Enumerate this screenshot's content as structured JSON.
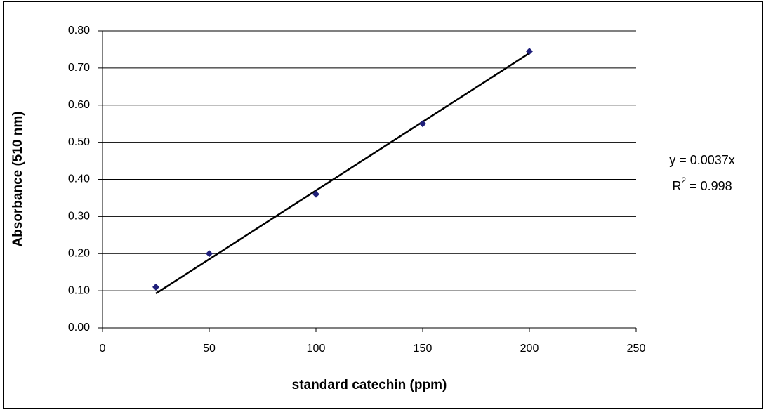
{
  "chart_data": {
    "type": "scatter",
    "x_label": "standard catechin (ppm)",
    "y_label": "Absorbance (510 nm)",
    "x": [
      25,
      50,
      100,
      150,
      200
    ],
    "values": [
      0.11,
      0.2,
      0.36,
      0.55,
      0.745
    ],
    "color": "#1f1f7a",
    "trendline": {
      "x": [
        25,
        200
      ],
      "values": [
        0.0925,
        0.74
      ],
      "color": "#000000"
    },
    "equation_label": "y = 0.0037x",
    "r2_label": "R",
    "r2_superscript": "2",
    "r2_value": " = 0.998",
    "xlim": [
      0,
      250
    ],
    "xticks": [
      0,
      50,
      100,
      150,
      200,
      250
    ],
    "ylim": [
      0,
      0.8
    ],
    "yticks": [
      {
        "value": 0,
        "label": "0.00"
      },
      {
        "value": 0.1,
        "label": "0.10"
      },
      {
        "value": 0.2,
        "label": "0.20"
      },
      {
        "value": 0.3,
        "label": "0.30"
      },
      {
        "value": 0.4,
        "label": "0.40"
      },
      {
        "value": 0.5,
        "label": "0.50"
      },
      {
        "value": 0.6,
        "label": "0.60"
      },
      {
        "value": 0.7,
        "label": "0.70"
      },
      {
        "value": 0.8,
        "label": "0.80"
      }
    ],
    "grid": true
  }
}
